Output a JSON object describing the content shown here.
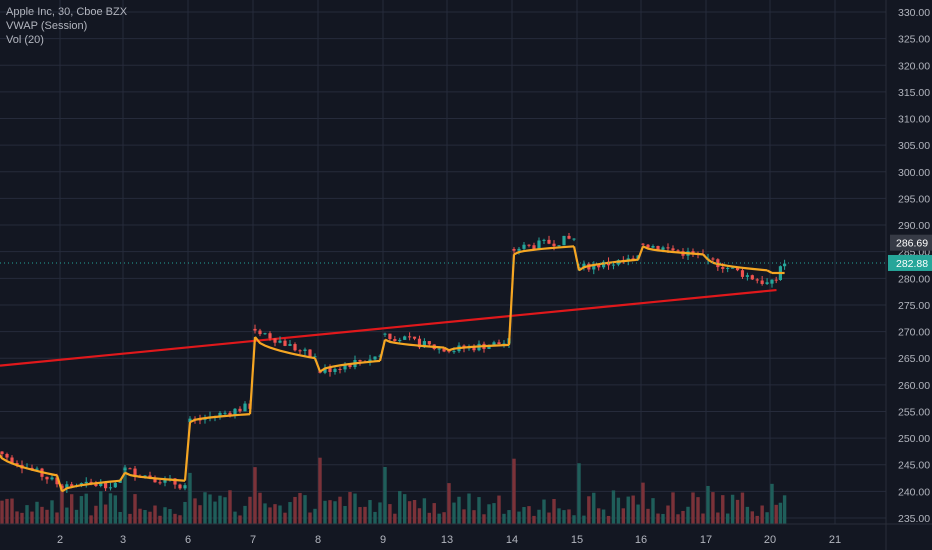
{
  "legend": {
    "symbol_line": "Apple Inc, 30, Cboe BZX",
    "vwap_label": "VWAP (Session)",
    "vol_label": "Vol (20)"
  },
  "colors": {
    "background": "#131722",
    "grid": "#262b3b",
    "up": "#26a69a",
    "down": "#ef5350",
    "vol_up": "#1f5e5a",
    "vol_down": "#7b3239",
    "vwap": "#f5a623",
    "trendline": "#e0181b",
    "axis_text": "#b2b5be",
    "price_tag_last": "#26a69a",
    "price_tag_high": "#363a45"
  },
  "chart_data": {
    "type": "candlestick",
    "title": "Apple Inc, 30, Cboe BZX",
    "price_axis": {
      "min": 235,
      "max": 330,
      "ticks": [
        "235.00",
        "240.00",
        "245.00",
        "250.00",
        "255.00",
        "260.00",
        "265.00",
        "270.00",
        "275.00",
        "280.00",
        "285.00",
        "290.00",
        "295.00",
        "300.00",
        "305.00",
        "310.00",
        "315.00",
        "320.00",
        "325.00",
        "330.00"
      ]
    },
    "time_axis": {
      "labels": [
        "2",
        "3",
        "6",
        "7",
        "8",
        "9",
        "13",
        "14",
        "15",
        "16",
        "17",
        "20",
        "21"
      ],
      "positions": [
        2,
        3,
        6,
        7,
        8,
        9,
        13,
        14,
        15,
        16,
        17,
        20,
        21
      ]
    },
    "price_labels": {
      "high_tag": "286.69",
      "last_tag": "282.88"
    },
    "sessions": [
      {
        "day": 1,
        "open": 247.5,
        "close": 241.5,
        "vwap_start": 247.5,
        "vwap_end": 243.0
      },
      {
        "day": 2,
        "open": 241.0,
        "close": 241.5,
        "vwap_start": 240.0,
        "vwap_end": 242.0
      },
      {
        "day": 3,
        "open": 244.0,
        "close": 241.0,
        "vwap_start": 243.5,
        "vwap_end": 242.0
      },
      {
        "day": 6,
        "open": 253.0,
        "close": 256.0,
        "vwap_start": 253.0,
        "vwap_end": 254.5
      },
      {
        "day": 7,
        "open": 270.5,
        "close": 265.0,
        "vwap_start": 269.0,
        "vwap_end": 265.0
      },
      {
        "day": 8,
        "open": 262.5,
        "close": 265.5,
        "vwap_start": 262.5,
        "vwap_end": 264.5
      },
      {
        "day": 9,
        "open": 269.5,
        "close": 266.5,
        "vwap_start": 268.5,
        "vwap_end": 267.0
      },
      {
        "day": 13,
        "open": 266.5,
        "close": 268.0,
        "vwap_start": 266.5,
        "vwap_end": 267.5
      },
      {
        "day": 14,
        "open": 285.5,
        "close": 287.5,
        "vwap_start": 284.5,
        "vwap_end": 286.0
      },
      {
        "day": 15,
        "open": 282.0,
        "close": 283.5,
        "vwap_start": 281.5,
        "vwap_end": 283.5
      },
      {
        "day": 16,
        "open": 286.5,
        "close": 284.0,
        "vwap_start": 286.0,
        "vwap_end": 284.5
      },
      {
        "day": 17,
        "open": 283.5,
        "close": 279.0,
        "vwap_start": 283.5,
        "vwap_end": 281.5
      },
      {
        "day": 20,
        "open": 279.0,
        "close": 282.9,
        "vwap_start": 281.0,
        "vwap_end": 281.0
      }
    ],
    "trendline": {
      "from": {
        "day": 0.0,
        "price": 263.6
      },
      "to": {
        "day": 20.1,
        "price": 277.8
      }
    },
    "volume": {
      "label": "Vol (20)"
    }
  }
}
